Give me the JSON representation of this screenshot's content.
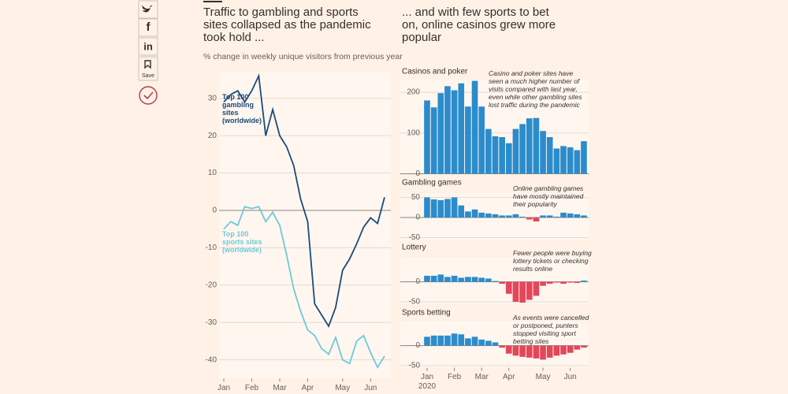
{
  "share_buttons": {
    "facebook": "f",
    "linkedin": "in",
    "save": "Save"
  },
  "headline_left": "Traffic to gambling and sports sites collapsed as the pandemic took hold ...",
  "headline_right": "... and with few sports to bet on, online casinos grew more popular",
  "subtitle": "% change in weekly unique visitors from previous year",
  "chart_data": [
    {
      "type": "line",
      "categories": [
        "Jan",
        null,
        null,
        null,
        "Feb",
        null,
        null,
        null,
        "Mar",
        null,
        null,
        null,
        "Apr",
        null,
        null,
        null,
        null,
        "May",
        null,
        null,
        null,
        "Jun",
        null,
        null
      ],
      "x_year_label": "2020",
      "series": [
        {
          "name": "Top 100 gambling sites (worldwide)",
          "color": "#1b4a7c",
          "values": [
            29,
            31,
            32,
            29,
            32,
            36,
            20,
            27,
            20,
            17,
            12,
            3,
            -3,
            -25,
            -28,
            -31,
            -26,
            -16,
            -13,
            -9,
            -4.5,
            -2,
            -3.5,
            3.5
          ]
        },
        {
          "name": "Top 100 sports sites (worldwide)",
          "color": "#6cc9db",
          "values": [
            -5,
            -3,
            -4,
            1,
            0.5,
            1,
            -3,
            -0.5,
            -4,
            -12,
            -21,
            -27,
            -32,
            -33.5,
            -37,
            -38.5,
            -34,
            -40,
            -41,
            -35,
            -33.5,
            -38,
            -42,
            -39
          ]
        }
      ],
      "ylim": [
        -45,
        37
      ],
      "yticks": [
        -40,
        -30,
        -20,
        -10,
        0,
        10,
        20,
        30
      ],
      "grid": true
    },
    {
      "type": "bar",
      "title": "Casinos and poker",
      "annotation": "Casino and poker sites have seen a much higher number of visits compared with last year, even while other gambling sites lost traffic during the pandemic",
      "values": [
        180,
        163,
        198,
        215,
        205,
        222,
        165,
        228,
        165,
        110,
        92,
        90,
        75,
        110,
        122,
        136,
        137,
        105,
        90,
        62,
        68,
        65,
        58,
        80
      ],
      "ylim": [
        0,
        230
      ],
      "yticks": [
        0,
        100,
        200
      ],
      "color": "#2b8ccc",
      "negative_color": "#e4465a"
    },
    {
      "type": "bar",
      "title": "Gambling games",
      "annotation": "Online gambling games have mostly maintained their popularity",
      "values": [
        50,
        45,
        43,
        46,
        50,
        30,
        15,
        20,
        12,
        10,
        8,
        5,
        5,
        8,
        2,
        -5,
        -10,
        5,
        5,
        2,
        12,
        10,
        8,
        5
      ],
      "ylim": [
        -55,
        60
      ],
      "yticks": [
        -50,
        0,
        50
      ],
      "color": "#2b8ccc",
      "negative_color": "#e4465a"
    },
    {
      "type": "bar",
      "title": "Lottery",
      "annotation": "Fewer people were buying lottery tickets or checking results online",
      "values": [
        15,
        15,
        18,
        12,
        15,
        10,
        12,
        12,
        10,
        8,
        2,
        -5,
        -30,
        -50,
        -52,
        -45,
        -35,
        -10,
        -5,
        -2,
        -5,
        -2,
        -3,
        3
      ],
      "ylim": [
        -55,
        60
      ],
      "yticks": [
        -50,
        0
      ],
      "color": "#2b8ccc",
      "negative_color": "#e4465a"
    },
    {
      "type": "bar",
      "title": "Sports betting",
      "annotation": "As events were cancelled or postponed, punters stopped visiting sport betting sites",
      "categories": [
        "Jan",
        null,
        null,
        null,
        "Feb",
        null,
        null,
        null,
        "Mar",
        null,
        null,
        null,
        "Apr",
        null,
        null,
        null,
        null,
        "May",
        null,
        null,
        null,
        "Jun",
        null,
        null
      ],
      "x_year_label": "2020",
      "values": [
        22,
        25,
        25,
        25,
        30,
        28,
        18,
        22,
        15,
        12,
        8,
        -5,
        -20,
        -25,
        -28,
        -30,
        -32,
        -35,
        -30,
        -25,
        -22,
        -18,
        -10,
        -5
      ],
      "ylim": [
        -55,
        60
      ],
      "yticks": [
        -50,
        0
      ],
      "color": "#2b8ccc",
      "negative_color": "#e4465a"
    }
  ]
}
